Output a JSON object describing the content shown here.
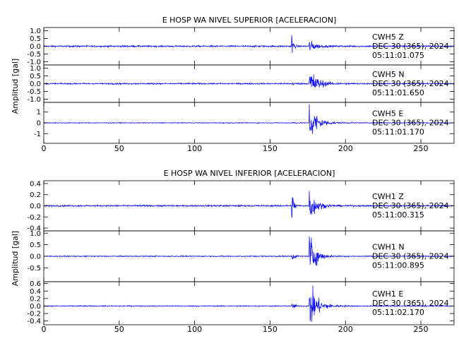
{
  "chart_data": [
    {
      "type": "line",
      "title": "E HOSP WA NIVEL SUPERIOR [ACELERACION]",
      "ylabel": "Amplitud [gal]",
      "xlim": [
        0,
        272
      ],
      "xticks": [
        0,
        50,
        100,
        150,
        200,
        250
      ],
      "xtick_labels": [
        "0",
        "50",
        "100",
        "150",
        "200",
        "250"
      ],
      "line_color": "#0000ff",
      "panels": [
        {
          "ylim": [
            -1.2,
            1.2
          ],
          "yticks": [
            -1.0,
            -0.5,
            0.0,
            0.5,
            1.0
          ],
          "ytick_labels": [
            "-1.0",
            "-0.5",
            "0.0",
            "0.5",
            "1.0"
          ],
          "label": [
            "CWH5 Z",
            "DEC 30 (365), 2024",
            "05:11:01.075"
          ],
          "noise": 0.045,
          "events": [
            {
              "t": 164.3,
              "amp": 0.95,
              "decay": 1.0
            },
            {
              "t": 176.0,
              "amp": 0.35,
              "decay": 4.0
            }
          ]
        },
        {
          "ylim": [
            -1.2,
            1.2
          ],
          "yticks": [
            -1.0,
            -0.5,
            0.0,
            0.5,
            1.0
          ],
          "ytick_labels": [
            "-1.0",
            "-0.5",
            "0.0",
            "0.5",
            "1.0"
          ],
          "label": [
            "CWH5 N",
            "DEC 30 (365), 2024",
            "05:11:01.650"
          ],
          "noise": 0.04,
          "events": [
            {
              "t": 164.5,
              "amp": 0.1,
              "decay": 1.5
            },
            {
              "t": 176.0,
              "amp": 0.95,
              "decay": 5.0
            }
          ]
        },
        {
          "ylim": [
            -1.9,
            1.9
          ],
          "yticks": [
            -1,
            0,
            1
          ],
          "ytick_labels": [
            "-1",
            "0",
            "1"
          ],
          "label": [
            "CWH5 E",
            "DEC 30 (365), 2024",
            "05:11:01.170"
          ],
          "noise": 0.03,
          "events": [
            {
              "t": 164.5,
              "amp": 0.15,
              "decay": 1.5
            },
            {
              "t": 176.0,
              "amp": 1.8,
              "decay": 5.0
            }
          ]
        }
      ]
    },
    {
      "type": "line",
      "title": "E HOSP WA NIVEL INFERIOR [ACELERACION]",
      "ylabel": "Amplitud [gal]",
      "xlim": [
        0,
        272
      ],
      "xticks": [
        0,
        50,
        100,
        150,
        200,
        250
      ],
      "xtick_labels": [
        "0",
        "50",
        "100",
        "150",
        "200",
        "250"
      ],
      "line_color": "#0000ff",
      "panels": [
        {
          "ylim": [
            -0.45,
            0.45
          ],
          "yticks": [
            -0.4,
            -0.2,
            0.0,
            0.2,
            0.4
          ],
          "ytick_labels": [
            "-0.4",
            "-0.2",
            "0.0",
            "0.2",
            "0.4"
          ],
          "label": [
            "CWH1 Z",
            "DEC 30 (365), 2024",
            "05:11:00.315"
          ],
          "noise": 0.012,
          "events": [
            {
              "t": 164.3,
              "amp": 0.42,
              "decay": 1.0
            },
            {
              "t": 176.0,
              "amp": 0.3,
              "decay": 4.0
            }
          ]
        },
        {
          "ylim": [
            -1.1,
            1.1
          ],
          "yticks": [
            -0.5,
            0.0,
            0.5,
            1.0
          ],
          "ytick_labels": [
            "-0.5",
            "0.0",
            "0.5",
            "1.0"
          ],
          "label": [
            "CWH1 N",
            "DEC 30 (365), 2024",
            "05:11:00.895"
          ],
          "noise": 0.02,
          "events": [
            {
              "t": 164.5,
              "amp": 0.2,
              "decay": 1.5
            },
            {
              "t": 176.0,
              "amp": 1.0,
              "decay": 4.0
            }
          ]
        },
        {
          "ylim": [
            -0.5,
            0.65
          ],
          "yticks": [
            -0.4,
            -0.2,
            0.0,
            0.2,
            0.4,
            0.6
          ],
          "ytick_labels": [
            "-0.4",
            "-0.2",
            "0.0",
            "0.2",
            "0.4",
            "0.6"
          ],
          "label": [
            "CWH1 E",
            "DEC 30 (365), 2024",
            "05:11:02.170"
          ],
          "noise": 0.012,
          "events": [
            {
              "t": 164.5,
              "amp": 0.12,
              "decay": 1.5
            },
            {
              "t": 176.0,
              "amp": 0.6,
              "decay": 5.0
            }
          ]
        }
      ]
    }
  ]
}
